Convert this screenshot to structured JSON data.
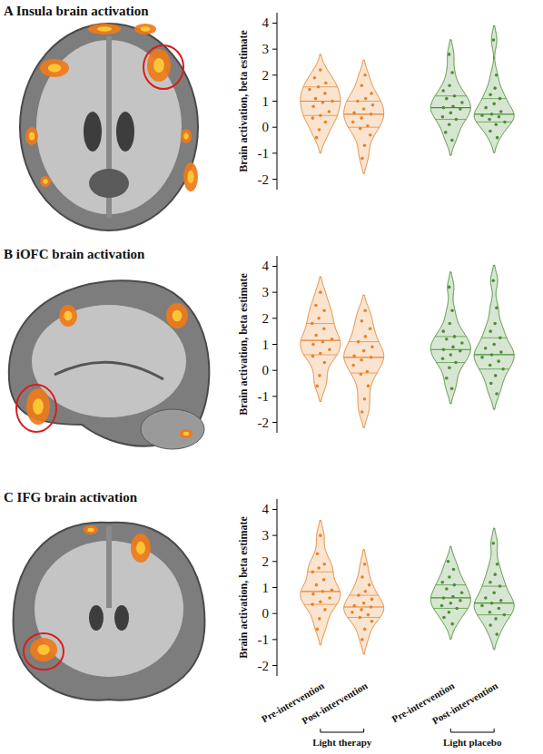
{
  "chart_data": [
    {
      "type": "violin",
      "title": "A Insula brain activation",
      "y_label": "Brain activation, beta estimate",
      "ylim": [
        -2.4,
        4.4
      ],
      "yticks": [
        -2,
        -1,
        0,
        1,
        2,
        3,
        4
      ],
      "tick_labels": "y",
      "series": [
        {
          "color": "#e8822a",
          "values": [
            [
              -0.4,
              -0.1,
              0.2,
              0.35,
              0.45,
              0.6,
              0.8,
              0.95,
              1.0,
              1.1,
              1.3,
              1.45,
              1.55,
              1.7,
              1.9,
              2.2
            ],
            [
              -1.2,
              -0.7,
              -0.3,
              -0.05,
              0.05,
              0.2,
              0.35,
              0.5,
              0.55,
              0.7,
              0.85,
              1.0,
              1.1,
              1.3,
              1.6,
              2.0
            ]
          ],
          "medians": [
            1.0,
            0.5
          ],
          "q1": [
            0.45,
            0.0
          ],
          "q3": [
            1.55,
            1.0
          ]
        },
        {
          "color": "#4a8f34",
          "values": [
            [
              -0.5,
              -0.2,
              0.1,
              0.3,
              0.4,
              0.55,
              0.7,
              0.75,
              0.8,
              0.95,
              1.1,
              1.2,
              1.4,
              1.6,
              2.1,
              2.8
            ],
            [
              -0.4,
              -0.15,
              0.1,
              0.2,
              0.3,
              0.4,
              0.45,
              0.5,
              0.6,
              0.75,
              0.9,
              1.1,
              1.25,
              1.5,
              2.0,
              3.35
            ]
          ],
          "medians": [
            0.75,
            0.5
          ],
          "q1": [
            0.3,
            0.2
          ],
          "q3": [
            1.2,
            1.1
          ]
        }
      ]
    },
    {
      "type": "violin",
      "title": "B iOFC brain activation",
      "y_label": "Brain activation, beta estimate",
      "ylim": [
        -2.4,
        4.4
      ],
      "yticks": [
        -2,
        -1,
        0,
        1,
        2,
        3,
        4
      ],
      "tick_labels": "y",
      "series": [
        {
          "color": "#e8822a",
          "values": [
            [
              -0.6,
              -0.2,
              0.3,
              0.55,
              0.65,
              0.8,
              1.0,
              1.1,
              1.2,
              1.35,
              1.6,
              1.8,
              2.0,
              2.3,
              2.5,
              3.0
            ],
            [
              -1.6,
              -1.1,
              -0.6,
              -0.15,
              -0.05,
              0.2,
              0.4,
              0.5,
              0.55,
              0.75,
              0.9,
              1.1,
              1.3,
              1.6,
              1.9,
              2.3
            ]
          ],
          "medians": [
            1.15,
            0.5
          ],
          "q1": [
            0.6,
            -0.1
          ],
          "q3": [
            1.8,
            1.1
          ]
        },
        {
          "color": "#4a8f34",
          "values": [
            [
              -0.7,
              -0.3,
              0.1,
              0.3,
              0.45,
              0.6,
              0.75,
              0.8,
              0.9,
              1.05,
              1.2,
              1.3,
              1.5,
              1.8,
              2.3,
              3.2
            ],
            [
              -0.9,
              -0.5,
              -0.2,
              0.05,
              0.2,
              0.35,
              0.5,
              0.6,
              0.7,
              0.85,
              1.0,
              1.25,
              1.5,
              1.8,
              2.4,
              3.45
            ]
          ],
          "medians": [
            0.8,
            0.6
          ],
          "q1": [
            0.3,
            0.05
          ],
          "q3": [
            1.3,
            1.25
          ]
        }
      ]
    },
    {
      "type": "violin",
      "title": "C IFG brain activation",
      "y_label": "Brain activation, beta estimate",
      "ylim": [
        -2.4,
        4.4
      ],
      "yticks": [
        -2,
        -1,
        0,
        1,
        2,
        3,
        4
      ],
      "tick_labels": true,
      "categories": [
        "Pre-intervention",
        "Post-intervention"
      ],
      "series": [
        {
          "name": "Light therapy",
          "color": "#e8822a",
          "values": [
            [
              -0.6,
              -0.2,
              0.15,
              0.35,
              0.45,
              0.6,
              0.75,
              0.85,
              0.9,
              1.1,
              1.3,
              1.6,
              1.75,
              1.9,
              2.3,
              3.0
            ],
            [
              -1.0,
              -0.6,
              -0.3,
              -0.15,
              -0.05,
              0.05,
              0.15,
              0.25,
              0.3,
              0.4,
              0.55,
              0.7,
              0.85,
              1.1,
              1.4,
              1.9
            ]
          ],
          "medians": [
            0.85,
            0.25
          ],
          "q1": [
            0.35,
            -0.15
          ],
          "q3": [
            1.6,
            0.7
          ]
        },
        {
          "name": "Light placebo",
          "color": "#4a8f34",
          "values": [
            [
              -0.4,
              -0.15,
              0.05,
              0.2,
              0.3,
              0.4,
              0.5,
              0.6,
              0.65,
              0.8,
              0.95,
              1.1,
              1.2,
              1.4,
              1.7,
              2.0
            ],
            [
              -0.8,
              -0.45,
              -0.2,
              -0.05,
              0.05,
              0.2,
              0.3,
              0.4,
              0.5,
              0.6,
              0.8,
              1.05,
              1.2,
              1.5,
              1.9,
              2.7
            ]
          ],
          "medians": [
            0.6,
            0.4
          ],
          "q1": [
            0.2,
            -0.05
          ],
          "q3": [
            1.1,
            1.05
          ]
        }
      ]
    }
  ]
}
